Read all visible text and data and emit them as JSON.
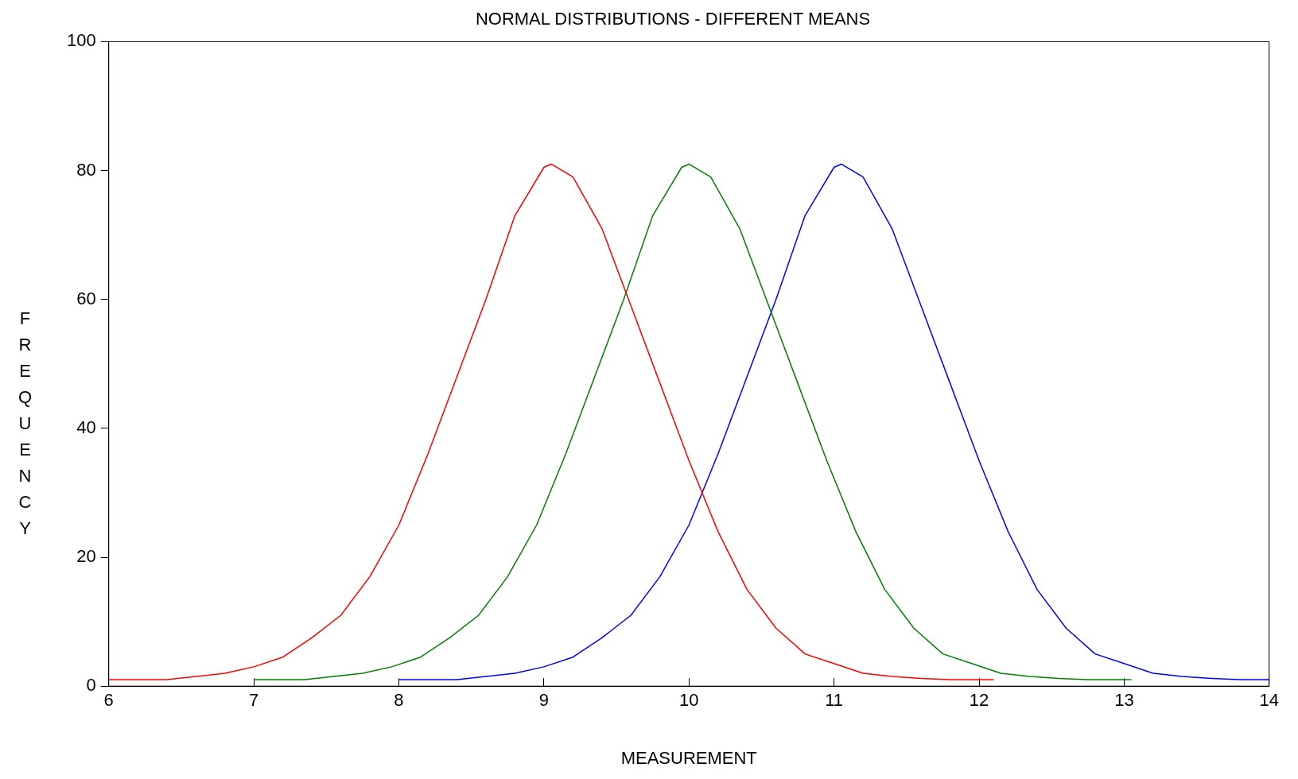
{
  "chart_data": {
    "type": "line",
    "title": "NORMAL DISTRIBUTIONS - DIFFERENT MEANS",
    "xlabel": "MEASUREMENT",
    "ylabel": "FREQUENCY",
    "xlim": [
      6,
      14
    ],
    "xticks": [
      6,
      7,
      8,
      9,
      10,
      11,
      12,
      13,
      14
    ],
    "ylim": [
      0,
      100
    ],
    "yticks": [
      0,
      20,
      40,
      60,
      80,
      100
    ],
    "grid": false,
    "legend": false,
    "marker": "none",
    "line_style": "solid",
    "series": [
      {
        "color": "#ff0000",
        "x": [
          6,
          6.4,
          6.6,
          6.8,
          7,
          7.2,
          7.4,
          7.6,
          7.8,
          8,
          8.2,
          8.4,
          8.6,
          8.8,
          9,
          9.05,
          9.2,
          9.4,
          9.6,
          9.8,
          10,
          10.2,
          10.4,
          10.6,
          10.8,
          11,
          11.2,
          11.4,
          11.6,
          11.8,
          12.1
        ],
        "values": [
          1,
          1,
          1.5,
          2,
          3,
          4.5,
          7.5,
          11,
          17,
          25,
          36,
          48,
          60,
          73,
          80.5,
          81,
          79,
          71,
          59,
          47,
          35,
          24,
          15,
          9,
          5,
          3.5,
          2,
          1.5,
          1.2,
          1,
          1
        ]
      },
      {
        "color": "#008000",
        "x": [
          7,
          7.35,
          7.55,
          7.75,
          7.95,
          8.15,
          8.35,
          8.55,
          8.75,
          8.95,
          9.15,
          9.35,
          9.55,
          9.75,
          9.95,
          10,
          10.15,
          10.35,
          10.55,
          10.75,
          10.95,
          11.15,
          11.35,
          11.55,
          11.75,
          11.95,
          12.15,
          12.35,
          12.55,
          12.75,
          13.05
        ],
        "values": [
          1,
          1,
          1.5,
          2,
          3,
          4.5,
          7.5,
          11,
          17,
          25,
          36,
          48,
          60,
          73,
          80.5,
          81,
          79,
          71,
          59,
          47,
          35,
          24,
          15,
          9,
          5,
          3.5,
          2,
          1.5,
          1.2,
          1,
          1
        ]
      },
      {
        "color": "#0000ff",
        "x": [
          8,
          8.4,
          8.6,
          8.8,
          9,
          9.2,
          9.4,
          9.6,
          9.8,
          10,
          10.2,
          10.4,
          10.6,
          10.8,
          11,
          11.05,
          11.2,
          11.4,
          11.6,
          11.8,
          12,
          12.2,
          12.4,
          12.6,
          12.8,
          13,
          13.2,
          13.4,
          13.6,
          13.8,
          14
        ],
        "values": [
          1,
          1,
          1.5,
          2,
          3,
          4.5,
          7.5,
          11,
          17,
          25,
          36,
          48,
          60,
          73,
          80.5,
          81,
          79,
          71,
          59,
          47,
          35,
          24,
          15,
          9,
          5,
          3.5,
          2,
          1.5,
          1.2,
          1,
          1
        ]
      }
    ]
  }
}
